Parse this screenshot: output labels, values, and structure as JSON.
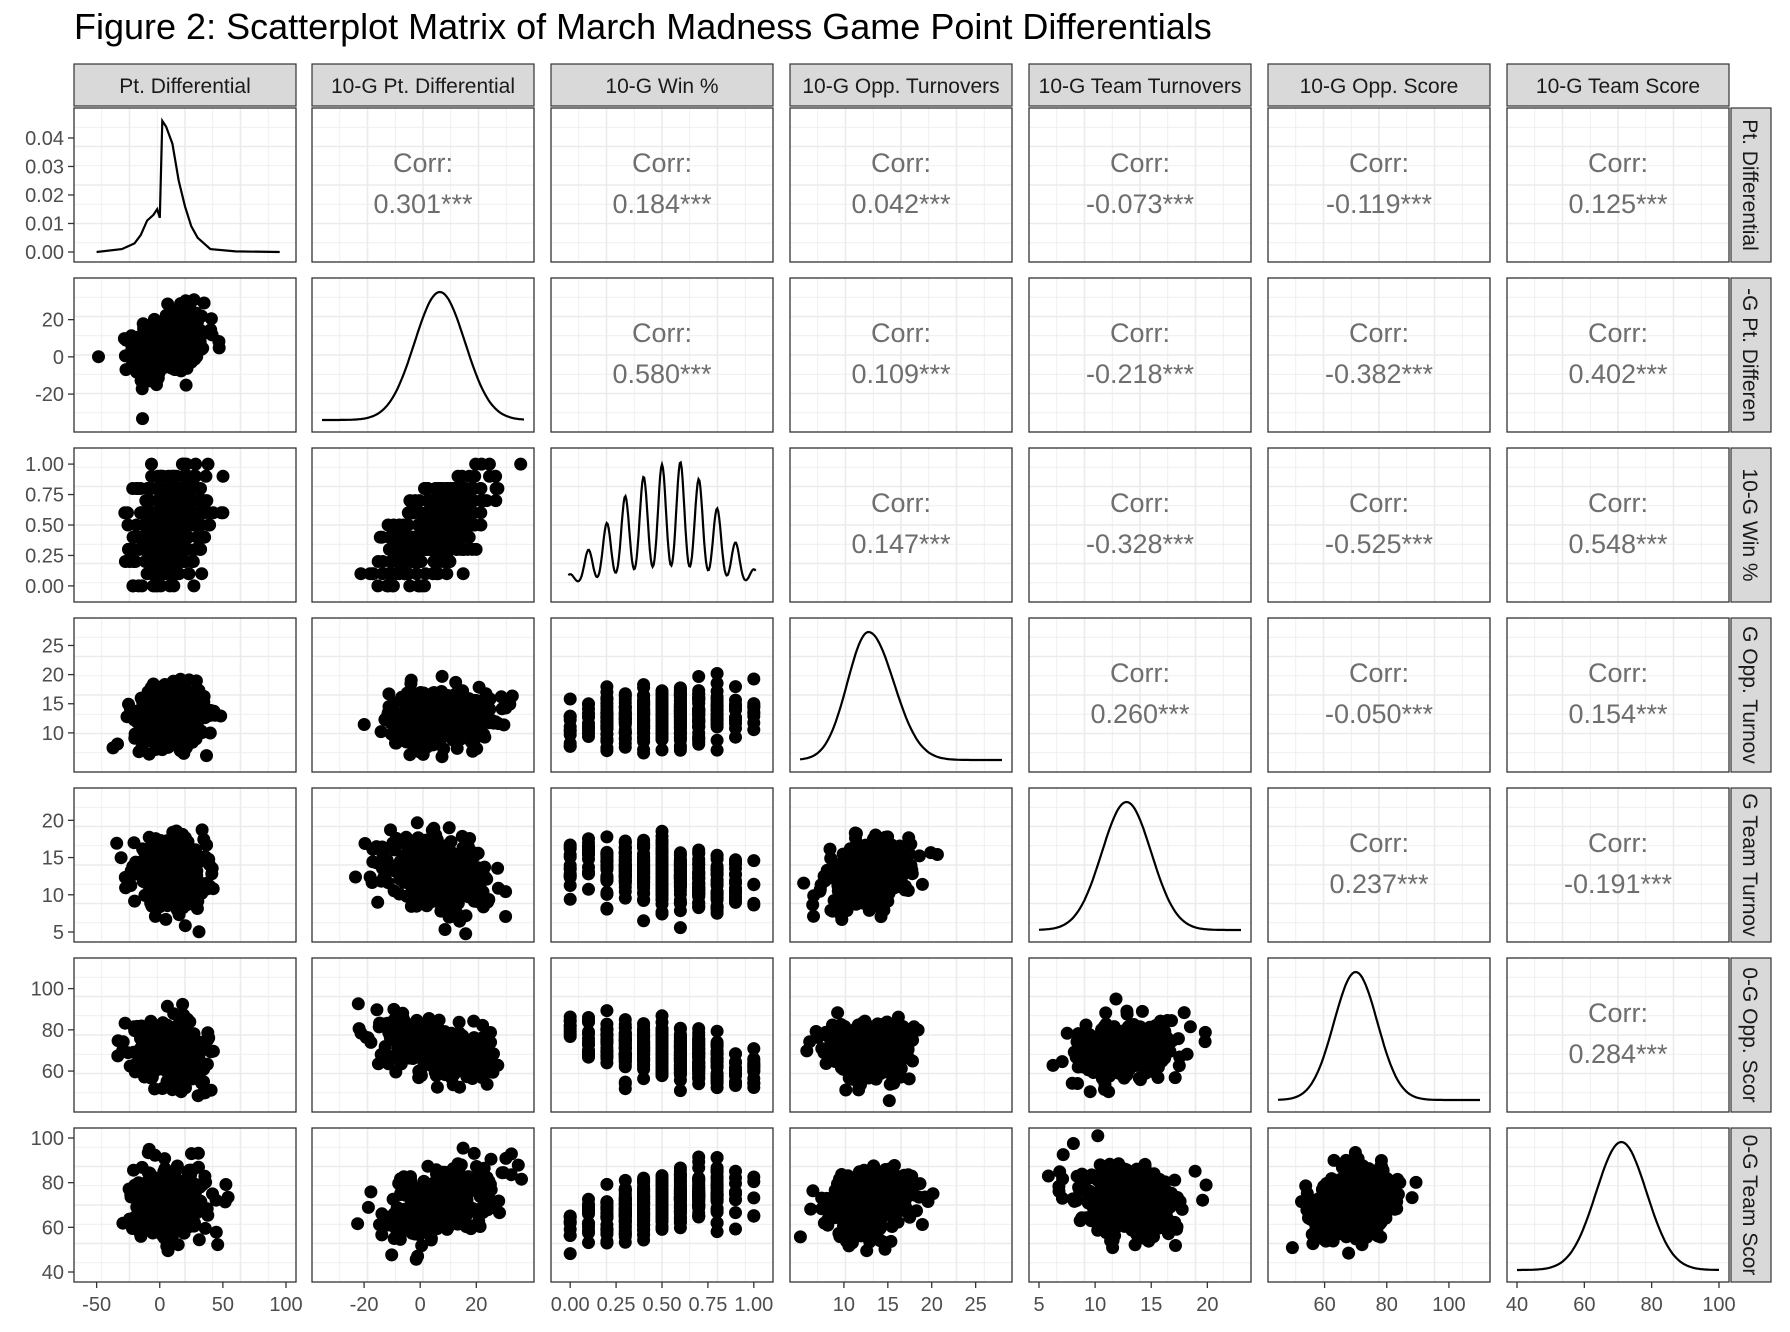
{
  "title": "Figure 2: Scatterplot Matrix of March Madness Game Point Differentials",
  "chart_data": {
    "type": "scatter",
    "variables": [
      "Pt. Differential",
      "10-G Pt. Differential",
      "10-G Win %",
      "10-G Opp. Turnovers",
      "10-G Team Turnovers",
      "10-G Opp. Score",
      "10-G Team Score"
    ],
    "row_strip_labels": [
      "Pt. Differential",
      "-G Pt. Differen",
      "10-G Win %",
      "G Opp. Turnov",
      "G Team Turnov",
      "0-G Opp. Scor",
      "0-G Team Scor"
    ],
    "x_ticks": [
      [
        "-50",
        "0",
        "50",
        "100"
      ],
      [
        "-20",
        "0",
        "20"
      ],
      [
        "0.00",
        "0.25",
        "0.50",
        "0.75",
        "1.00"
      ],
      [
        "10",
        "15",
        "20",
        "25"
      ],
      [
        "5",
        "10",
        "15",
        "20"
      ],
      [
        "60",
        "80",
        "100"
      ],
      [
        "40",
        "60",
        "80",
        "100"
      ]
    ],
    "y_ticks": [
      [
        "0.00",
        "0.01",
        "0.02",
        "0.03",
        "0.04"
      ],
      [
        "-20",
        "0",
        "20"
      ],
      [
        "0.00",
        "0.25",
        "0.50",
        "0.75",
        "1.00"
      ],
      [
        "10",
        "15",
        "20",
        "25"
      ],
      [
        "5",
        "10",
        "15",
        "20"
      ],
      [
        "60",
        "80",
        "100"
      ],
      [
        "40",
        "60",
        "80",
        "100"
      ]
    ],
    "axis_ranges": [
      [
        -60,
        100
      ],
      [
        -35,
        37
      ],
      [
        -0.05,
        1.05
      ],
      [
        5,
        28
      ],
      [
        5,
        23
      ],
      [
        45,
        110
      ],
      [
        40,
        100
      ]
    ],
    "density_ylim_first": [
      0,
      0.047
    ],
    "correlation_label": "Corr:",
    "correlations": [
      {
        "row": 0,
        "col": 1,
        "value": "0.301***"
      },
      {
        "row": 0,
        "col": 2,
        "value": "0.184***"
      },
      {
        "row": 0,
        "col": 3,
        "value": "0.042***"
      },
      {
        "row": 0,
        "col": 4,
        "value": "-0.073***"
      },
      {
        "row": 0,
        "col": 5,
        "value": "-0.119***"
      },
      {
        "row": 0,
        "col": 6,
        "value": "0.125***"
      },
      {
        "row": 1,
        "col": 2,
        "value": "0.580***"
      },
      {
        "row": 1,
        "col": 3,
        "value": "0.109***"
      },
      {
        "row": 1,
        "col": 4,
        "value": "-0.218***"
      },
      {
        "row": 1,
        "col": 5,
        "value": "-0.382***"
      },
      {
        "row": 1,
        "col": 6,
        "value": "0.402***"
      },
      {
        "row": 2,
        "col": 3,
        "value": "0.147***"
      },
      {
        "row": 2,
        "col": 4,
        "value": "-0.328***"
      },
      {
        "row": 2,
        "col": 5,
        "value": "-0.525***"
      },
      {
        "row": 2,
        "col": 6,
        "value": "0.548***"
      },
      {
        "row": 3,
        "col": 4,
        "value": "0.260***"
      },
      {
        "row": 3,
        "col": 5,
        "value": "-0.050***"
      },
      {
        "row": 3,
        "col": 6,
        "value": "0.154***"
      },
      {
        "row": 4,
        "col": 5,
        "value": "0.237***"
      },
      {
        "row": 4,
        "col": 6,
        "value": "-0.191***"
      },
      {
        "row": 5,
        "col": 6,
        "value": "0.284***"
      }
    ],
    "variable_summary": [
      {
        "mean": 8,
        "sd": 14
      },
      {
        "mean": 7,
        "sd": 9
      },
      {
        "mean": 0.5,
        "sd": 0.22
      },
      {
        "mean": 12.8,
        "sd": 2.4
      },
      {
        "mean": 12.8,
        "sd": 2.2
      },
      {
        "mean": 70,
        "sd": 7
      },
      {
        "mean": 71,
        "sd": 7.5
      }
    ],
    "density_peaks": [
      [
        -50,
        0
      ],
      [
        -30,
        0.001
      ],
      [
        -20,
        0.003
      ],
      [
        -15,
        0.006
      ],
      [
        -10,
        0.011
      ],
      [
        -5,
        0.013
      ],
      [
        -2,
        0.015
      ],
      [
        0,
        0.012
      ],
      [
        2,
        0.046
      ],
      [
        5,
        0.044
      ],
      [
        10,
        0.038
      ],
      [
        15,
        0.025
      ],
      [
        20,
        0.016
      ],
      [
        25,
        0.009
      ],
      [
        30,
        0.005
      ],
      [
        40,
        0.001
      ],
      [
        60,
        0.0002
      ],
      [
        95,
        0
      ]
    ],
    "win_pct_values": [
      0,
      0.1,
      0.2,
      0.3,
      0.4,
      0.5,
      0.6,
      0.7,
      0.8,
      0.9,
      1.0
    ],
    "win_pct_weights": [
      0.08,
      0.28,
      0.5,
      0.72,
      0.88,
      0.98,
      1.0,
      0.86,
      0.62,
      0.34,
      0.12
    ],
    "grid": true,
    "theme": "bw",
    "point_color": "#000000",
    "strip_fill": "#d9d9d9",
    "corr_text_color": "#6e6e6e"
  }
}
